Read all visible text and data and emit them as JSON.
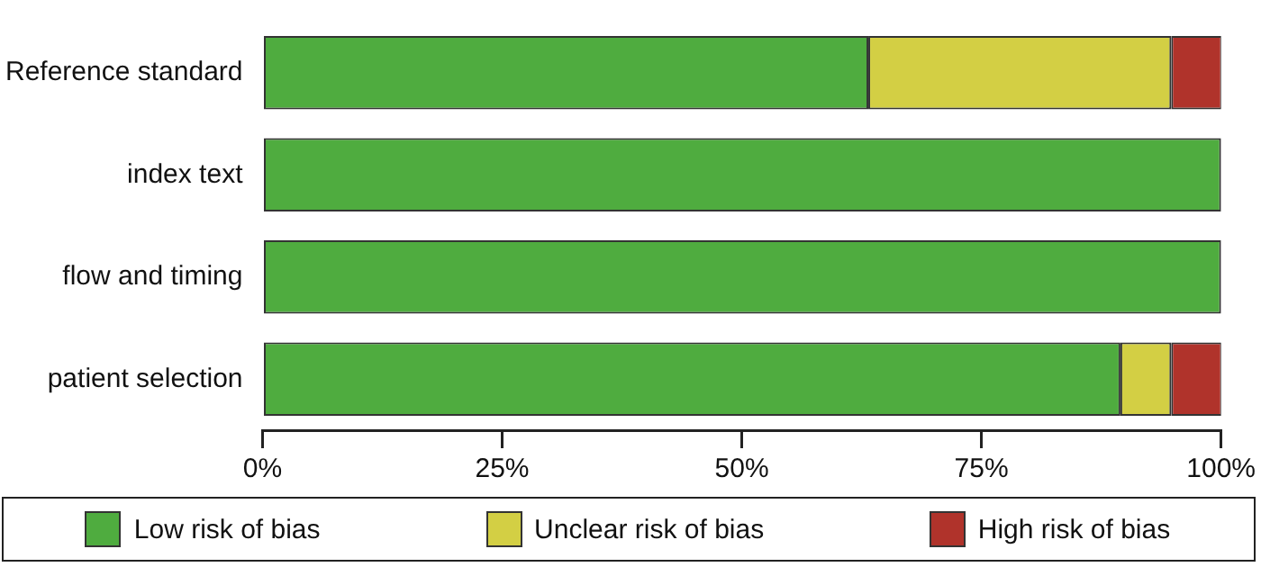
{
  "chart_data": {
    "type": "bar",
    "orientation": "horizontal",
    "stacked": true,
    "categories": [
      "Reference standard",
      "index text",
      "flow and timing",
      "patient selection"
    ],
    "series": [
      {
        "name": "Low risk of bias",
        "color": "#4fac3f",
        "values": [
          63.2,
          100,
          100,
          89.5
        ]
      },
      {
        "name": "Unclear risk of bias",
        "color": "#d3cf44",
        "values": [
          31.6,
          0,
          0,
          5.3
        ]
      },
      {
        "name": "High risk of bias",
        "color": "#b0332b",
        "values": [
          5.3,
          0,
          0,
          5.3
        ]
      }
    ],
    "xlim": [
      0,
      100
    ],
    "xticks": [
      {
        "value": 0,
        "label": "0%"
      },
      {
        "value": 25,
        "label": "25%"
      },
      {
        "value": 50,
        "label": "50%"
      },
      {
        "value": 75,
        "label": "75%"
      },
      {
        "value": 100,
        "label": "100%"
      }
    ],
    "grid": false,
    "legend": "bottom"
  }
}
